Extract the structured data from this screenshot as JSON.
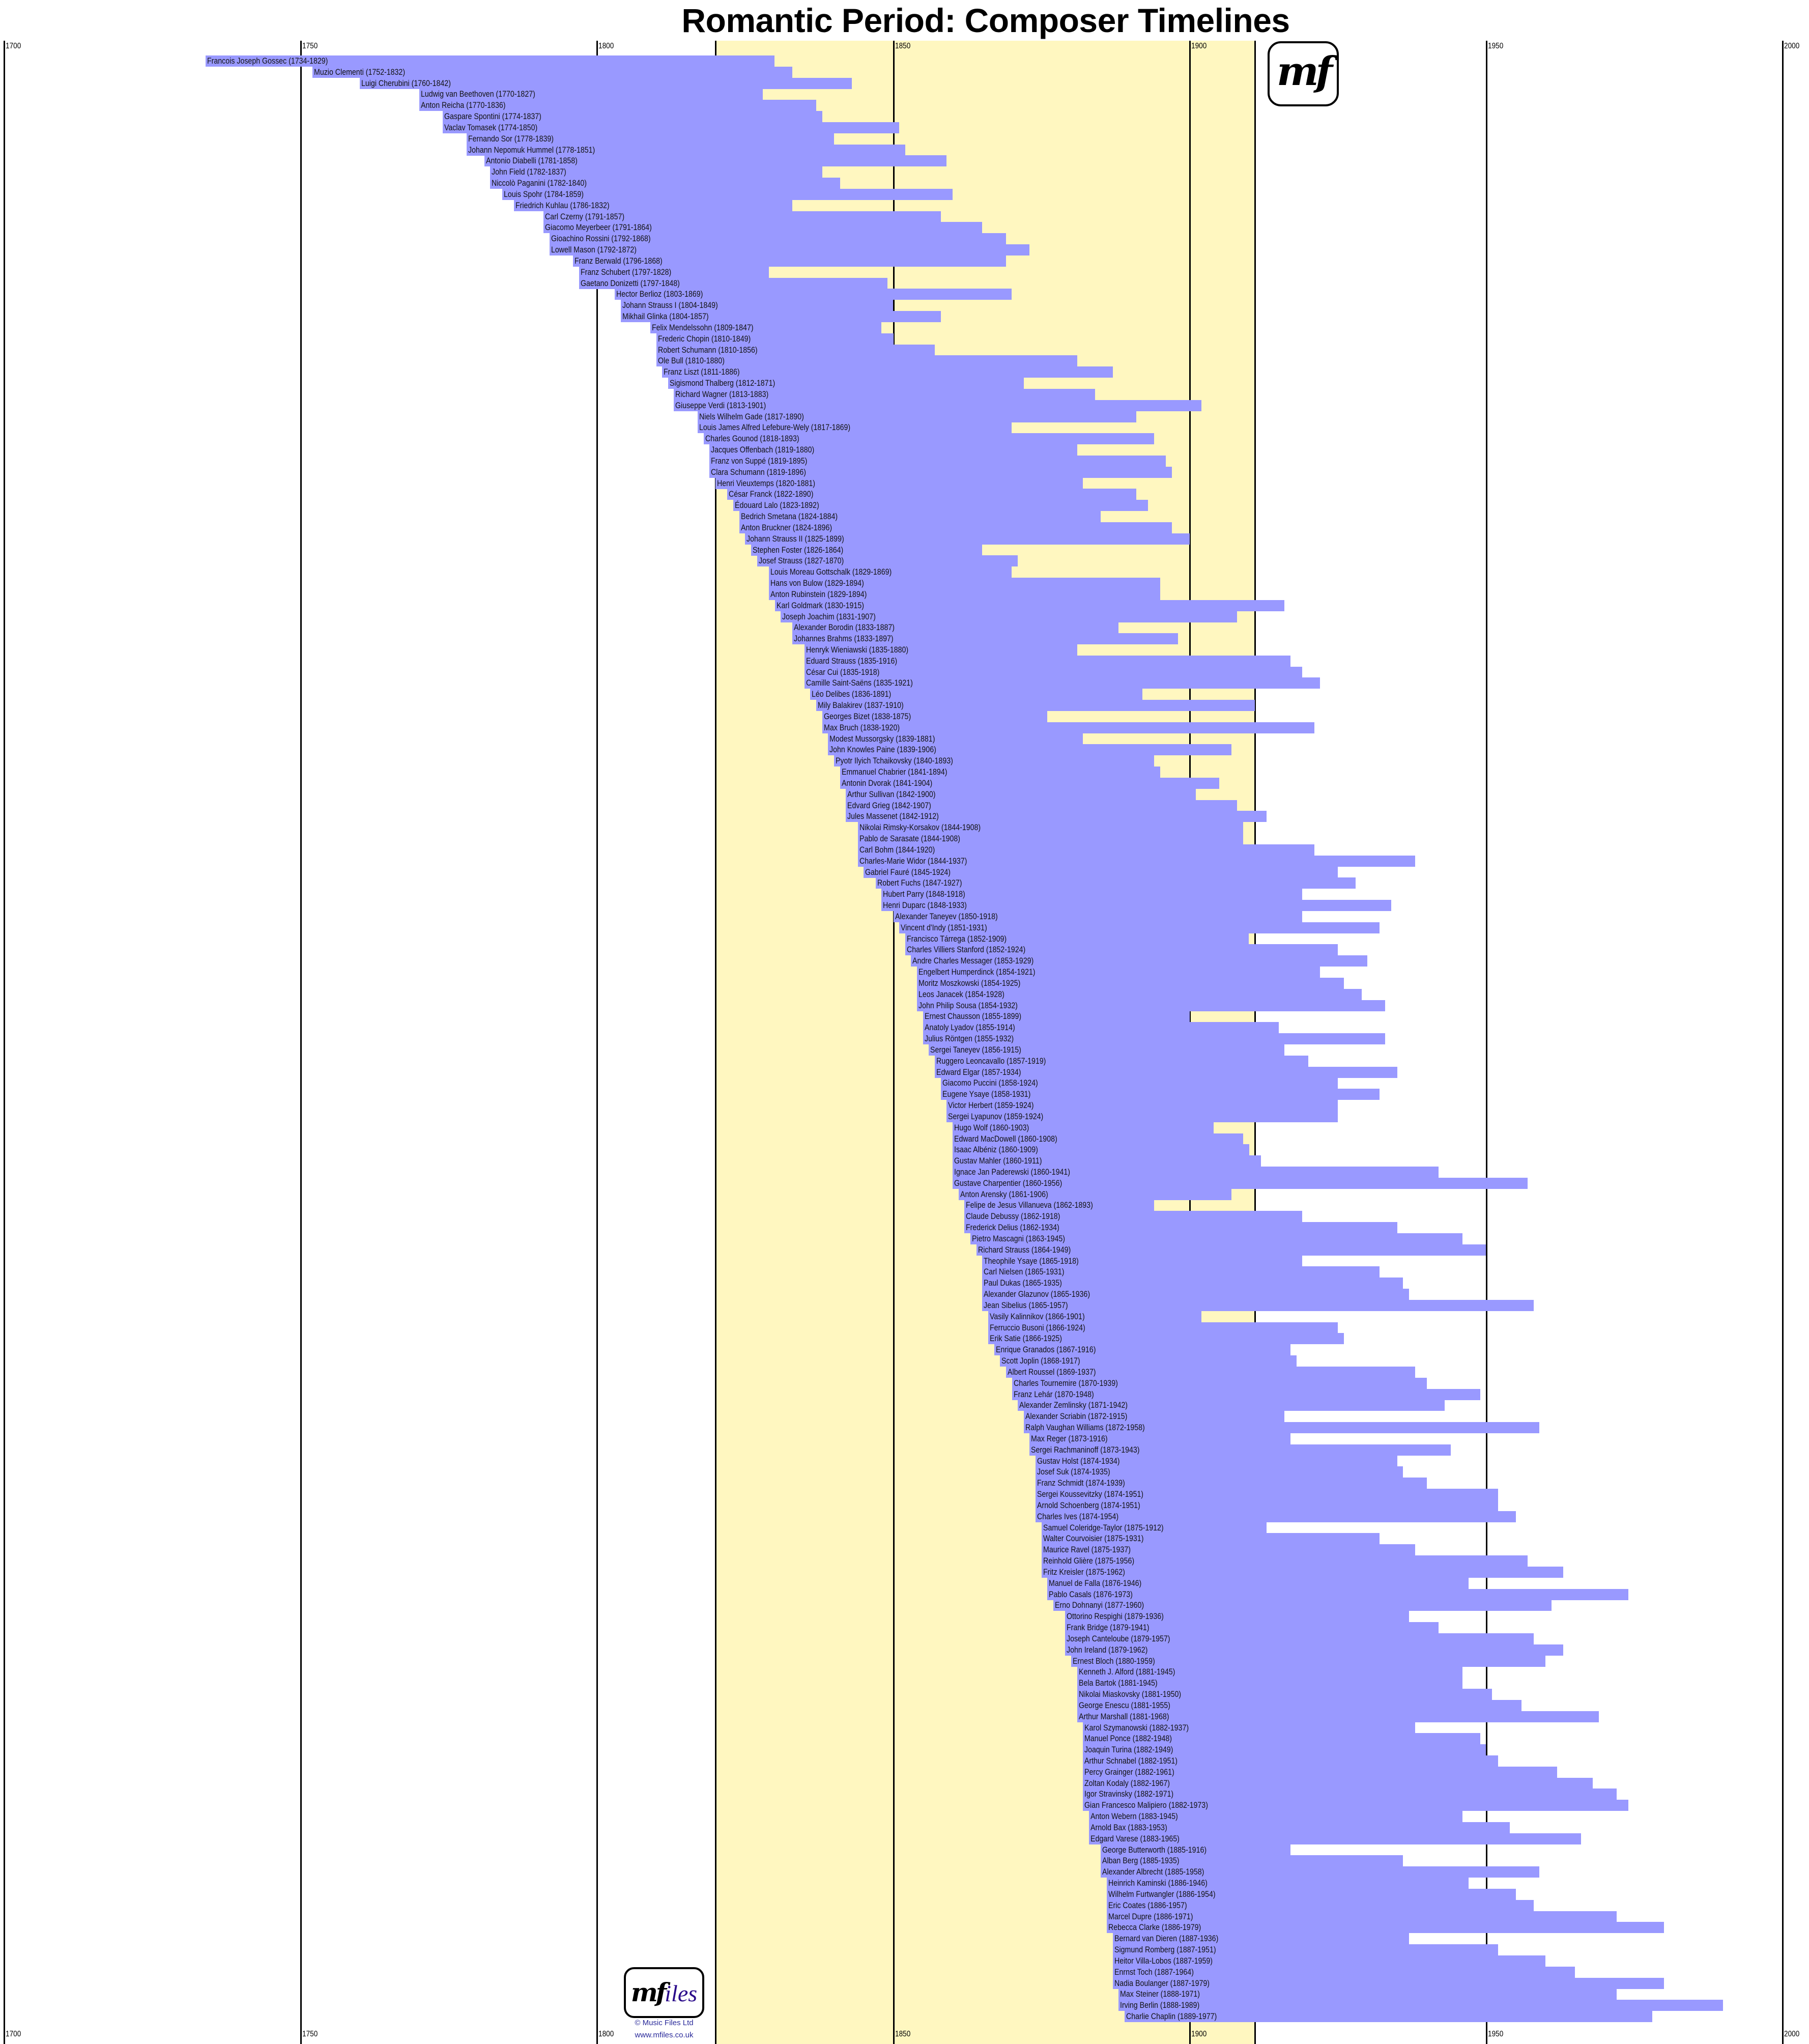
{
  "title": "Romantic Period: Composer Timelines",
  "logos": {
    "top_logo_text": "mf",
    "bottom_logo_text_mf": "mf",
    "bottom_logo_text_iles": "iles",
    "copyright": "© Music Files Ltd",
    "website": "www.mfiles.co.uk"
  },
  "colors": {
    "bar": "#9999ff",
    "highlight_band": "#fff7c0",
    "gridline": "#000000"
  },
  "chart_data": {
    "type": "bar",
    "orientation": "horizontal-timeline",
    "title": "Romantic Period: Composer Timelines",
    "xlim": [
      1700,
      2000
    ],
    "x_ticks": [
      1700,
      1750,
      1800,
      1850,
      1900,
      1950,
      2000
    ],
    "x_tick_labels_position": "top and bottom",
    "highlight_range": [
      1820,
      1910
    ],
    "grid": true,
    "composers": [
      {
        "name": "Francois Joseph Gossec",
        "born": 1734,
        "died": 1829
      },
      {
        "name": "Muzio Clementi",
        "born": 1752,
        "died": 1832
      },
      {
        "name": "Luigi Cherubini",
        "born": 1760,
        "died": 1842
      },
      {
        "name": "Ludwig van Beethoven",
        "born": 1770,
        "died": 1827
      },
      {
        "name": "Anton Reicha",
        "born": 1770,
        "died": 1836
      },
      {
        "name": "Gaspare Spontini",
        "born": 1774,
        "died": 1837
      },
      {
        "name": "Vaclav Tomasek",
        "born": 1774,
        "died": 1850
      },
      {
        "name": "Fernando Sor",
        "born": 1778,
        "died": 1839
      },
      {
        "name": "Johann Nepomuk Hummel",
        "born": 1778,
        "died": 1851
      },
      {
        "name": "Antonio Diabelli",
        "born": 1781,
        "died": 1858
      },
      {
        "name": "John Field",
        "born": 1782,
        "died": 1837
      },
      {
        "name": "Niccolò Paganini",
        "born": 1782,
        "died": 1840
      },
      {
        "name": "Louis Spohr",
        "born": 1784,
        "died": 1859
      },
      {
        "name": "Friedrich Kuhlau",
        "born": 1786,
        "died": 1832
      },
      {
        "name": "Carl Czerny",
        "born": 1791,
        "died": 1857
      },
      {
        "name": "Giacomo Meyerbeer",
        "born": 1791,
        "died": 1864
      },
      {
        "name": "Gioachino Rossini",
        "born": 1792,
        "died": 1868
      },
      {
        "name": "Lowell Mason",
        "born": 1792,
        "died": 1872
      },
      {
        "name": "Franz Berwald",
        "born": 1796,
        "died": 1868
      },
      {
        "name": "Franz Schubert",
        "born": 1797,
        "died": 1828
      },
      {
        "name": "Gaetano Donizetti",
        "born": 1797,
        "died": 1848
      },
      {
        "name": "Hector Berlioz",
        "born": 1803,
        "died": 1869
      },
      {
        "name": "Johann Strauss I",
        "born": 1804,
        "died": 1849
      },
      {
        "name": "Mikhail Glinka",
        "born": 1804,
        "died": 1857
      },
      {
        "name": "Felix Mendelssohn",
        "born": 1809,
        "died": 1847
      },
      {
        "name": "Frederic Chopin",
        "born": 1810,
        "died": 1849
      },
      {
        "name": "Robert Schumann",
        "born": 1810,
        "died": 1856
      },
      {
        "name": "Ole Bull",
        "born": 1810,
        "died": 1880
      },
      {
        "name": "Franz Liszt",
        "born": 1811,
        "died": 1886
      },
      {
        "name": "Sigismond Thalberg",
        "born": 1812,
        "died": 1871
      },
      {
        "name": "Richard Wagner",
        "born": 1813,
        "died": 1883
      },
      {
        "name": "Giuseppe Verdi",
        "born": 1813,
        "died": 1901
      },
      {
        "name": "Niels Wilhelm Gade",
        "born": 1817,
        "died": 1890
      },
      {
        "name": "Louis James Alfred Lefebure-Wely",
        "born": 1817,
        "died": 1869
      },
      {
        "name": "Charles Gounod",
        "born": 1818,
        "died": 1893
      },
      {
        "name": "Jacques Offenbach",
        "born": 1819,
        "died": 1880
      },
      {
        "name": "Franz von Suppé",
        "born": 1819,
        "died": 1895
      },
      {
        "name": "Clara Schumann",
        "born": 1819,
        "died": 1896
      },
      {
        "name": "Henri Vieuxtemps",
        "born": 1820,
        "died": 1881
      },
      {
        "name": "César Franck",
        "born": 1822,
        "died": 1890
      },
      {
        "name": "Édouard Lalo",
        "born": 1823,
        "died": 1892
      },
      {
        "name": "Bedrich Smetana",
        "born": 1824,
        "died": 1884
      },
      {
        "name": "Anton Bruckner",
        "born": 1824,
        "died": 1896
      },
      {
        "name": "Johann Strauss II",
        "born": 1825,
        "died": 1899
      },
      {
        "name": "Stephen Foster",
        "born": 1826,
        "died": 1864
      },
      {
        "name": "Josef Strauss",
        "born": 1827,
        "died": 1870
      },
      {
        "name": "Louis Moreau Gottschalk",
        "born": 1829,
        "died": 1869
      },
      {
        "name": "Hans von Bulow",
        "born": 1829,
        "died": 1894
      },
      {
        "name": "Anton Rubinstein",
        "born": 1829,
        "died": 1894
      },
      {
        "name": "Karl Goldmark",
        "born": 1830,
        "died": 1915
      },
      {
        "name": "Joseph Joachim",
        "born": 1831,
        "died": 1907
      },
      {
        "name": "Alexander Borodin",
        "born": 1833,
        "died": 1887
      },
      {
        "name": "Johannes Brahms",
        "born": 1833,
        "died": 1897
      },
      {
        "name": "Henryk Wieniawski",
        "born": 1835,
        "died": 1880
      },
      {
        "name": "Eduard Strauss",
        "born": 1835,
        "died": 1916
      },
      {
        "name": "César Cui",
        "born": 1835,
        "died": 1918
      },
      {
        "name": "Camille Saint-Saëns",
        "born": 1835,
        "died": 1921
      },
      {
        "name": "Léo Delibes",
        "born": 1836,
        "died": 1891
      },
      {
        "name": "Mily Balakirev",
        "born": 1837,
        "died": 1910
      },
      {
        "name": "Georges Bizet",
        "born": 1838,
        "died": 1875
      },
      {
        "name": "Max Bruch",
        "born": 1838,
        "died": 1920
      },
      {
        "name": "Modest Mussorgsky",
        "born": 1839,
        "died": 1881
      },
      {
        "name": "John Knowles Paine",
        "born": 1839,
        "died": 1906
      },
      {
        "name": "Pyotr Ilyich Tchaikovsky",
        "born": 1840,
        "died": 1893
      },
      {
        "name": "Emmanuel Chabrier",
        "born": 1841,
        "died": 1894
      },
      {
        "name": "Antonin Dvorak",
        "born": 1841,
        "died": 1904
      },
      {
        "name": "Arthur Sullivan",
        "born": 1842,
        "died": 1900
      },
      {
        "name": "Edvard Grieg",
        "born": 1842,
        "died": 1907
      },
      {
        "name": "Jules Massenet",
        "born": 1842,
        "died": 1912
      },
      {
        "name": "Nikolai Rimsky-Korsakov",
        "born": 1844,
        "died": 1908
      },
      {
        "name": "Pablo de Sarasate",
        "born": 1844,
        "died": 1908
      },
      {
        "name": "Carl Bohm",
        "born": 1844,
        "died": 1920
      },
      {
        "name": "Charles-Marie Widor",
        "born": 1844,
        "died": 1937
      },
      {
        "name": "Gabriel Fauré",
        "born": 1845,
        "died": 1924
      },
      {
        "name": "Robert Fuchs",
        "born": 1847,
        "died": 1927
      },
      {
        "name": "Hubert Parry",
        "born": 1848,
        "died": 1918
      },
      {
        "name": "Henri Duparc",
        "born": 1848,
        "died": 1933
      },
      {
        "name": "Alexander Taneyev",
        "born": 1850,
        "died": 1918
      },
      {
        "name": "Vincent d'Indy",
        "born": 1851,
        "died": 1931
      },
      {
        "name": "Francisco Tárrega",
        "born": 1852,
        "died": 1909
      },
      {
        "name": "Charles Villiers Stanford",
        "born": 1852,
        "died": 1924
      },
      {
        "name": "Andre Charles Messager",
        "born": 1853,
        "died": 1929
      },
      {
        "name": "Engelbert Humperdinck",
        "born": 1854,
        "died": 1921
      },
      {
        "name": "Moritz Moszkowski",
        "born": 1854,
        "died": 1925
      },
      {
        "name": "Leos Janacek",
        "born": 1854,
        "died": 1928
      },
      {
        "name": "John Philip Sousa",
        "born": 1854,
        "died": 1932
      },
      {
        "name": "Ernest Chausson",
        "born": 1855,
        "died": 1899
      },
      {
        "name": "Anatoly Lyadov",
        "born": 1855,
        "died": 1914
      },
      {
        "name": "Julius Röntgen",
        "born": 1855,
        "died": 1932
      },
      {
        "name": "Sergei Taneyev",
        "born": 1856,
        "died": 1915
      },
      {
        "name": "Ruggero Leoncavallo",
        "born": 1857,
        "died": 1919
      },
      {
        "name": "Edward Elgar",
        "born": 1857,
        "died": 1934
      },
      {
        "name": "Giacomo Puccini",
        "born": 1858,
        "died": 1924
      },
      {
        "name": "Eugene Ysaye",
        "born": 1858,
        "died": 1931
      },
      {
        "name": "Victor Herbert",
        "born": 1859,
        "died": 1924
      },
      {
        "name": "Sergei Lyapunov",
        "born": 1859,
        "died": 1924
      },
      {
        "name": "Hugo Wolf",
        "born": 1860,
        "died": 1903
      },
      {
        "name": "Edward MacDowell",
        "born": 1860,
        "died": 1908
      },
      {
        "name": "Isaac Albéniz",
        "born": 1860,
        "died": 1909
      },
      {
        "name": "Gustav Mahler",
        "born": 1860,
        "died": 1911
      },
      {
        "name": "Ignace Jan Paderewski",
        "born": 1860,
        "died": 1941
      },
      {
        "name": "Gustave Charpentier",
        "born": 1860,
        "died": 1956
      },
      {
        "name": "Anton Arensky",
        "born": 1861,
        "died": 1906
      },
      {
        "name": "Felipe de Jesus Villanueva",
        "born": 1862,
        "died": 1893
      },
      {
        "name": "Claude Debussy",
        "born": 1862,
        "died": 1918
      },
      {
        "name": "Frederick Delius",
        "born": 1862,
        "died": 1934
      },
      {
        "name": "Pietro Mascagni",
        "born": 1863,
        "died": 1945
      },
      {
        "name": "Richard  Strauss",
        "born": 1864,
        "died": 1949
      },
      {
        "name": "Theophile Ysaye",
        "born": 1865,
        "died": 1918
      },
      {
        "name": "Carl Nielsen",
        "born": 1865,
        "died": 1931
      },
      {
        "name": "Paul Dukas",
        "born": 1865,
        "died": 1935
      },
      {
        "name": "Alexander Glazunov",
        "born": 1865,
        "died": 1936
      },
      {
        "name": "Jean  Sibelius",
        "born": 1865,
        "died": 1957
      },
      {
        "name": "Vasily Kalinnikov",
        "born": 1866,
        "died": 1901
      },
      {
        "name": "Ferruccio Busoni",
        "born": 1866,
        "died": 1924
      },
      {
        "name": "Erik Satie",
        "born": 1866,
        "died": 1925
      },
      {
        "name": "Enrique Granados",
        "born": 1867,
        "died": 1916
      },
      {
        "name": "Scott Joplin",
        "born": 1868,
        "died": 1917
      },
      {
        "name": "Albert Roussel",
        "born": 1869,
        "died": 1937
      },
      {
        "name": "Charles Tournemire",
        "born": 1870,
        "died": 1939
      },
      {
        "name": "Franz Lehár",
        "born": 1870,
        "died": 1948
      },
      {
        "name": "Alexander Zemlinsky",
        "born": 1871,
        "died": 1942
      },
      {
        "name": "Alexander Scriabin",
        "born": 1872,
        "died": 1915
      },
      {
        "name": "Ralph Vaughan Williams",
        "born": 1872,
        "died": 1958
      },
      {
        "name": "Max Reger",
        "born": 1873,
        "died": 1916
      },
      {
        "name": "Sergei Rachmaninoff",
        "born": 1873,
        "died": 1943
      },
      {
        "name": "Gustav Holst",
        "born": 1874,
        "died": 1934
      },
      {
        "name": "Josef Suk",
        "born": 1874,
        "died": 1935
      },
      {
        "name": "Franz Schmidt",
        "born": 1874,
        "died": 1939
      },
      {
        "name": "Sergei Koussevitzky",
        "born": 1874,
        "died": 1951
      },
      {
        "name": "Arnold Schoenberg",
        "born": 1874,
        "died": 1951
      },
      {
        "name": "Charles Ives",
        "born": 1874,
        "died": 1954
      },
      {
        "name": "Samuel Coleridge-Taylor",
        "born": 1875,
        "died": 1912
      },
      {
        "name": "Walter Courvoisier",
        "born": 1875,
        "died": 1931
      },
      {
        "name": "Maurice Ravel",
        "born": 1875,
        "died": 1937
      },
      {
        "name": "Reinhold Glière",
        "born": 1875,
        "died": 1956
      },
      {
        "name": "Fritz Kreisler",
        "born": 1875,
        "died": 1962
      },
      {
        "name": "Manuel de Falla",
        "born": 1876,
        "died": 1946
      },
      {
        "name": "Pablo Casals",
        "born": 1876,
        "died": 1973
      },
      {
        "name": "Erno Dohnanyi",
        "born": 1877,
        "died": 1960
      },
      {
        "name": "Ottorino Respighi",
        "born": 1879,
        "died": 1936
      },
      {
        "name": "Frank Bridge",
        "born": 1879,
        "died": 1941
      },
      {
        "name": "Joseph Canteloube",
        "born": 1879,
        "died": 1957
      },
      {
        "name": "John Ireland",
        "born": 1879,
        "died": 1962
      },
      {
        "name": "Ernest Bloch",
        "born": 1880,
        "died": 1959
      },
      {
        "name": "Kenneth J. Alford",
        "born": 1881,
        "died": 1945
      },
      {
        "name": "Bela Bartok",
        "born": 1881,
        "died": 1945
      },
      {
        "name": "Nikolai Miaskovsky",
        "born": 1881,
        "died": 1950
      },
      {
        "name": "George Enescu",
        "born": 1881,
        "died": 1955
      },
      {
        "name": "Arthur Marshall",
        "born": 1881,
        "died": 1968
      },
      {
        "name": "Karol Szymanowski",
        "born": 1882,
        "died": 1937
      },
      {
        "name": "Manuel Ponce",
        "born": 1882,
        "died": 1948
      },
      {
        "name": "Joaquin Turina",
        "born": 1882,
        "died": 1949
      },
      {
        "name": "Arthur Schnabel",
        "born": 1882,
        "died": 1951
      },
      {
        "name": "Percy Grainger",
        "born": 1882,
        "died": 1961
      },
      {
        "name": "Zoltan Kodaly",
        "born": 1882,
        "died": 1967
      },
      {
        "name": "Igor Stravinsky",
        "born": 1882,
        "died": 1971
      },
      {
        "name": "Gian Francesco Malipiero",
        "born": 1882,
        "died": 1973
      },
      {
        "name": "Anton Webern",
        "born": 1883,
        "died": 1945
      },
      {
        "name": "Arnold Bax",
        "born": 1883,
        "died": 1953
      },
      {
        "name": "Edgard Varese",
        "born": 1883,
        "died": 1965
      },
      {
        "name": "George Butterworth",
        "born": 1885,
        "died": 1916
      },
      {
        "name": "Alban Berg",
        "born": 1885,
        "died": 1935
      },
      {
        "name": "Alexander Albrecht",
        "born": 1885,
        "died": 1958
      },
      {
        "name": "Heinrich Kaminski",
        "born": 1886,
        "died": 1946
      },
      {
        "name": "Wilhelm Furtwangler",
        "born": 1886,
        "died": 1954
      },
      {
        "name": "Eric Coates",
        "born": 1886,
        "died": 1957
      },
      {
        "name": "Marcel Dupre",
        "born": 1886,
        "died": 1971
      },
      {
        "name": "Rebecca Clarke",
        "born": 1886,
        "died": 1979
      },
      {
        "name": "Bernard van Dieren",
        "born": 1887,
        "died": 1936
      },
      {
        "name": "Sigmund Romberg",
        "born": 1887,
        "died": 1951
      },
      {
        "name": "Heitor Villa-Lobos",
        "born": 1887,
        "died": 1959
      },
      {
        "name": "Enrnst Toch",
        "born": 1887,
        "died": 1964
      },
      {
        "name": "Nadia Boulanger",
        "born": 1887,
        "died": 1979
      },
      {
        "name": "Max Steiner",
        "born": 1888,
        "died": 1971
      },
      {
        "name": "Irving Berlin",
        "born": 1888,
        "died": 1989
      },
      {
        "name": "Charlie Chaplin",
        "born": 1889,
        "died": 1977
      }
    ]
  }
}
